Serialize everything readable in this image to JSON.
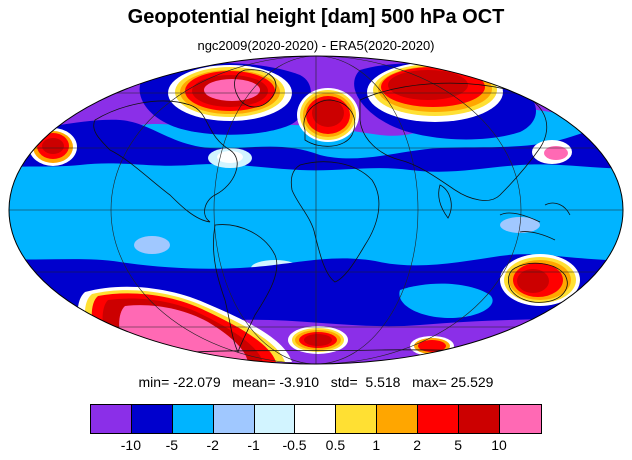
{
  "title": "Geopotential height [dam] 500 hPa OCT",
  "subtitle": "ngc2009(2020-2020) - ERA5(2020-2020)",
  "stats": {
    "min_label": "min=",
    "min": "-22.079",
    "mean_label": "mean=",
    "mean": "-3.910",
    "std_label": "std=",
    "std": "5.518",
    "max_label": "max=",
    "max": "25.529"
  },
  "colorbar": {
    "colors": [
      "#8b2fe8",
      "#0000cd",
      "#00b4ff",
      "#a0c8ff",
      "#d2f4ff",
      "#ffffff",
      "#ffe033",
      "#ffa600",
      "#ff0000",
      "#cc0000",
      "#ff69b4"
    ],
    "labels": [
      "-10",
      "-5",
      "-2",
      "-1",
      "-0.5",
      "0.5",
      "1",
      "2",
      "5",
      "10"
    ]
  },
  "map": {
    "projection": "mollweide",
    "background_color": "#00b4ff"
  }
}
